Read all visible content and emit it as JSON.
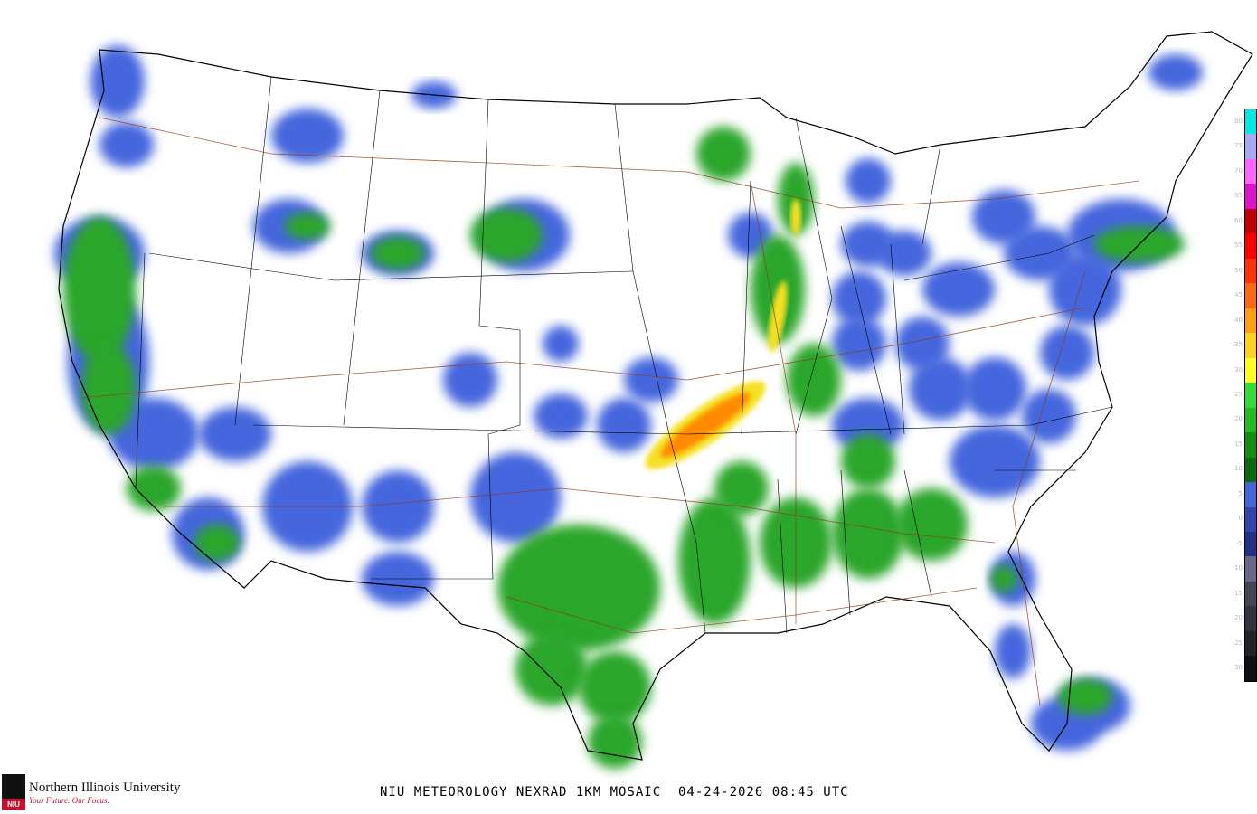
{
  "title": "NIU METEOROLOGY NEXRAD 1KM MOSAIC  04-24-2026 08:45 UTC",
  "logo": {
    "name": "Northern Illinois University",
    "tagline": "Your Future. Our Focus.",
    "seal_text": "NIU"
  },
  "legend": {
    "unit_values": [
      80,
      75,
      70,
      65,
      60,
      55,
      50,
      45,
      40,
      35,
      30,
      25,
      20,
      15,
      10,
      5,
      0,
      -5,
      -10,
      -15,
      -20,
      -25,
      -30
    ],
    "colors": [
      "#00e8e8",
      "#a8a8f0",
      "#ff66ff",
      "#e010d0",
      "#c00000",
      "#ff0000",
      "#ff3300",
      "#ff6a10",
      "#ffa010",
      "#ffd020",
      "#ffff20",
      "#33dd33",
      "#22bb22",
      "#109010",
      "#0a6a10",
      "#4466dd",
      "#3344aa",
      "#223088",
      "#666688",
      "#444455",
      "#333340",
      "#222228",
      "#111115"
    ]
  },
  "map_colors": {
    "light": "#4466dd",
    "green": "#2aa62a",
    "dark_green": "#147a14",
    "yellow": "#f5e020",
    "orange": "#ff8a00",
    "red": "#e01010",
    "borders": "#000000",
    "roads": "#8b3a1a"
  }
}
